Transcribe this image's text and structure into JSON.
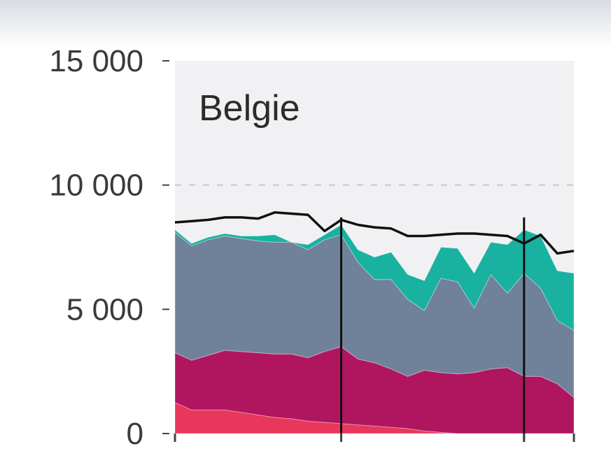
{
  "chart_data": {
    "type": "area",
    "title": "Belgie",
    "xlabel": "",
    "ylabel": "",
    "ylim": [
      0,
      15000
    ],
    "y_ticks": [
      {
        "value": 0,
        "label": "0"
      },
      {
        "value": 5000,
        "label": "5 000"
      },
      {
        "value": 10000,
        "label": "10 000"
      },
      {
        "value": 15000,
        "label": "15 000"
      }
    ],
    "grid": "dashed horizontal at 5 000 and 10 000",
    "background": "#f1f1f3",
    "x": [
      1,
      2,
      3,
      4,
      5,
      6,
      7,
      8,
      9,
      10,
      11,
      12,
      13,
      14,
      15,
      16,
      17,
      18,
      19,
      20,
      21,
      22,
      23,
      24,
      25
    ],
    "x_ticks": [
      1,
      11,
      22,
      25
    ],
    "vertical_markers": [
      11,
      22
    ],
    "series": [
      {
        "color": "#e8375a",
        "values": [
          1250,
          950,
          950,
          950,
          850,
          750,
          650,
          600,
          500,
          450,
          400,
          350,
          300,
          250,
          200,
          100,
          50,
          0,
          0,
          0,
          0,
          0,
          0,
          0,
          0
        ]
      },
      {
        "color": "#b01660",
        "values": [
          2000,
          2000,
          2200,
          2400,
          2450,
          2500,
          2550,
          2600,
          2550,
          2850,
          3100,
          2650,
          2550,
          2350,
          2100,
          2450,
          2400,
          2400,
          2450,
          2600,
          2650,
          2300,
          2300,
          2000,
          1450
        ]
      },
      {
        "color": "#6f8299",
        "values": [
          4850,
          4600,
          4650,
          4600,
          4550,
          4500,
          4500,
          4500,
          4350,
          4500,
          4500,
          3900,
          3350,
          3600,
          3100,
          2400,
          3800,
          3700,
          2600,
          3800,
          3000,
          4150,
          3550,
          2550,
          2700
        ]
      },
      {
        "color": "#19b1a0",
        "values": [
          100,
          100,
          100,
          100,
          100,
          200,
          300,
          0,
          200,
          200,
          400,
          500,
          900,
          1100,
          1000,
          1200,
          1250,
          1350,
          1400,
          1300,
          1950,
          1750,
          2100,
          2000,
          2300
        ]
      }
    ],
    "total_line": {
      "color": "#111111",
      "values": [
        8500,
        8550,
        8600,
        8700,
        8700,
        8650,
        8900,
        8850,
        8800,
        8150,
        8600,
        8400,
        8300,
        8250,
        7950,
        7950,
        8000,
        8050,
        8050,
        8000,
        7950,
        7650,
        8000,
        7250,
        7350
      ]
    }
  }
}
